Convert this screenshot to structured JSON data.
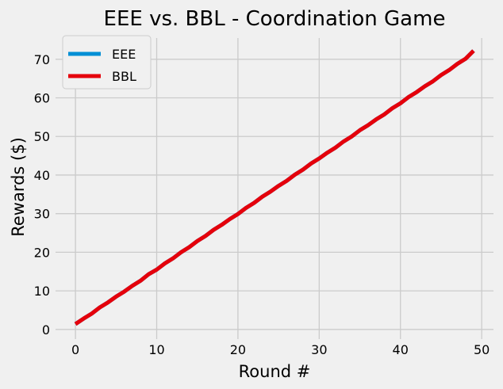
{
  "chart_data": {
    "type": "line",
    "title": "EEE vs. BBL - Coordination Game",
    "xlabel": "Round #",
    "ylabel": "Rewards ($)",
    "xlim": [
      -2.45,
      51.45
    ],
    "ylim": [
      -2.5,
      75.5
    ],
    "xticks": [
      0,
      10,
      20,
      30,
      40,
      50
    ],
    "yticks": [
      0,
      10,
      20,
      30,
      40,
      50,
      60,
      70
    ],
    "grid": true,
    "legend_position": "top-left",
    "x": [
      0,
      1,
      2,
      3,
      4,
      5,
      6,
      7,
      8,
      9,
      10,
      11,
      12,
      13,
      14,
      15,
      16,
      17,
      18,
      19,
      20,
      21,
      22,
      23,
      24,
      25,
      26,
      27,
      28,
      29,
      30,
      31,
      32,
      33,
      34,
      35,
      36,
      37,
      38,
      39,
      40,
      41,
      42,
      43,
      44,
      45,
      46,
      47,
      48,
      49
    ],
    "series": [
      {
        "name": "EEE",
        "color": "#008fd5",
        "values": [
          1.4,
          2.8,
          4.1,
          5.7,
          7.0,
          8.5,
          9.8,
          11.3,
          12.6,
          14.3,
          15.5,
          17.1,
          18.4,
          20.0,
          21.3,
          22.9,
          24.2,
          25.8,
          27.1,
          28.6,
          29.9,
          31.5,
          32.8,
          34.4,
          35.7,
          37.2,
          38.5,
          40.1,
          41.4,
          43.0,
          44.3,
          45.8,
          47.1,
          48.7,
          50.0,
          51.6,
          52.9,
          54.4,
          55.7,
          57.3,
          58.6,
          60.2,
          61.5,
          63.0,
          64.3,
          65.9,
          67.2,
          68.8,
          70.1,
          72.2
        ]
      },
      {
        "name": "BBL",
        "color": "#e5000b",
        "values": [
          1.4,
          2.8,
          4.1,
          5.7,
          7.0,
          8.5,
          9.8,
          11.3,
          12.6,
          14.3,
          15.5,
          17.1,
          18.4,
          20.0,
          21.3,
          22.9,
          24.2,
          25.8,
          27.1,
          28.6,
          29.9,
          31.5,
          32.8,
          34.4,
          35.7,
          37.2,
          38.5,
          40.1,
          41.4,
          43.0,
          44.3,
          45.8,
          47.1,
          48.7,
          50.0,
          51.6,
          52.9,
          54.4,
          55.7,
          57.3,
          58.6,
          60.2,
          61.5,
          63.0,
          64.3,
          65.9,
          67.2,
          68.8,
          70.1,
          72.2
        ]
      }
    ]
  }
}
